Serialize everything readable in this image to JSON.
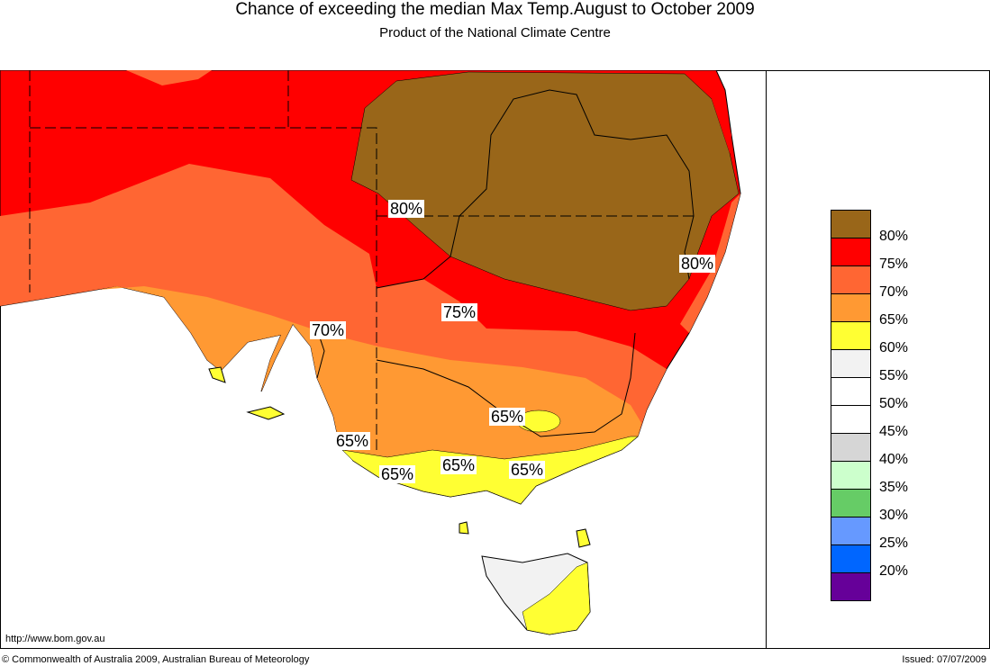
{
  "title": "Chance of exceeding the median Max Temp.August to October 2009",
  "subtitle": "Product of the National Climate Centre",
  "legend": [
    {
      "label": "",
      "color": "#996619"
    },
    {
      "label": "80%",
      "color": "#ff0000"
    },
    {
      "label": "75%",
      "color": "#ff6633"
    },
    {
      "label": "70%",
      "color": "#ff9933"
    },
    {
      "label": "65%",
      "color": "#ffff33"
    },
    {
      "label": "60%",
      "color": "#f2f2f2"
    },
    {
      "label": "55%",
      "color": "#ffffff"
    },
    {
      "label": "50%",
      "color": "#ffffff"
    },
    {
      "label": "45%",
      "color": "#d6d6d6"
    },
    {
      "label": "40%",
      "color": "#ccffcc"
    },
    {
      "label": "35%",
      "color": "#66cc66"
    },
    {
      "label": "30%",
      "color": "#6699ff"
    },
    {
      "label": "25%",
      "color": "#0066ff"
    },
    {
      "label": "20%",
      "color": "#660099"
    }
  ],
  "map_labels": [
    "80%",
    "80%",
    "75%",
    "70%",
    "65%",
    "65%",
    "65%",
    "65%",
    "65%"
  ],
  "url": "http://www.bom.gov.au",
  "copyright": "© Commonwealth of Australia 2009, Australian Bureau of Meteorology",
  "issued": "Issued: 07/07/2009"
}
